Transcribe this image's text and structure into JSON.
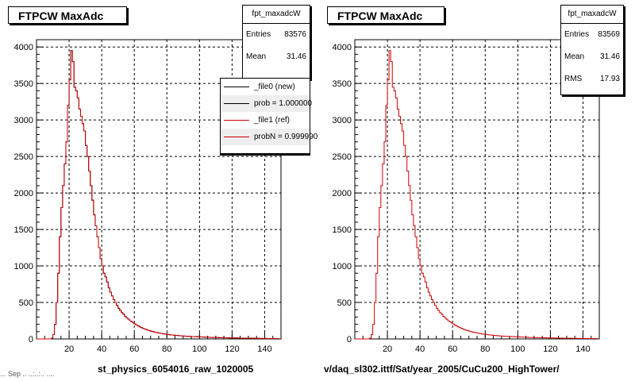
{
  "colors": {
    "new": "#000000",
    "ref": "#d00000",
    "grid": "#000000"
  },
  "panels": [
    {
      "title": "FTPCW MaxAdc",
      "xlabel": "st_physics_6054016_raw_1020005"
    },
    {
      "title": "FTPCW MaxAdc",
      "xlabel": "v/daq_sl302.ittf/Sat/year_2005/CuCu200_HighTower/"
    }
  ],
  "stats": [
    {
      "name": "fpt_maxadcW",
      "rows": [
        {
          "label": "Entries",
          "value": "83576"
        },
        {
          "label": "Mean",
          "value": "31.46"
        }
      ]
    },
    {
      "name": "fpt_maxadcW",
      "rows": [
        {
          "label": "Entries",
          "value": "83569"
        },
        {
          "label": "Mean",
          "value": "31.46"
        },
        {
          "label": "RMS",
          "value": "17.93"
        }
      ]
    }
  ],
  "legend": [
    {
      "label": "_file0 (new)",
      "color": "#000000"
    },
    {
      "label": "prob = 1.000000",
      "color": "#000000"
    },
    {
      "label": "_file1 (ref)",
      "color": "#d00000"
    },
    {
      "label": "probN = 0.999990",
      "color": "#d00000"
    }
  ],
  "footer_text": "... Sep ..  ..:..:.. ....",
  "chart_data": [
    {
      "type": "histogram",
      "title": "FTPCW MaxAdc",
      "xlabel": "st_physics_6054016_raw_1020005",
      "ylabel": "",
      "xlim": [
        0,
        150
      ],
      "ylim": [
        0,
        4100
      ],
      "xticks": [
        20,
        40,
        60,
        80,
        100,
        120,
        140
      ],
      "yticks": [
        0,
        500,
        1000,
        1500,
        2000,
        2500,
        3000,
        3500,
        4000
      ],
      "grid": true,
      "bin_start": 0,
      "bin_width": 1,
      "series": [
        {
          "name": "_file0 (new)",
          "color": "#000000",
          "values": [
            0,
            0,
            0,
            0,
            0,
            0,
            0,
            0,
            0,
            10,
            60,
            200,
            500,
            900,
            1400,
            1800,
            2100,
            2400,
            2700,
            3200,
            3550,
            3950,
            3800,
            3450,
            3400,
            3300,
            3150,
            3050,
            2950,
            2850,
            2650,
            2500,
            2300,
            2100,
            1900,
            1700,
            1550,
            1400,
            1250,
            1100,
            1000,
            900,
            850,
            780,
            700,
            640,
            590,
            540,
            500,
            460,
            420,
            390,
            360,
            340,
            310,
            290,
            270,
            250,
            235,
            220,
            205,
            190,
            178,
            166,
            155,
            145,
            136,
            128,
            120,
            113,
            106,
            100,
            94,
            89,
            84,
            80,
            76,
            72,
            68,
            65,
            62,
            59,
            56,
            54,
            51,
            49,
            47,
            45,
            43,
            41,
            40,
            38,
            36,
            35,
            34,
            33,
            32,
            31,
            30,
            29,
            28,
            27,
            26,
            25,
            24,
            23,
            22,
            21,
            21,
            20,
            19,
            19,
            18,
            17,
            17,
            16,
            16,
            15,
            15,
            14,
            14,
            13,
            13,
            12,
            12,
            11,
            11,
            11,
            10,
            10,
            10,
            9,
            9,
            9,
            8,
            8,
            8,
            7,
            7,
            7,
            7,
            6,
            6,
            6,
            5,
            5,
            5,
            5,
            4
          ]
        },
        {
          "name": "_file1 (ref)",
          "color": "#d00000",
          "values": [
            0,
            0,
            0,
            0,
            0,
            0,
            0,
            0,
            0,
            10,
            60,
            200,
            500,
            900,
            1400,
            1800,
            2100,
            2400,
            2700,
            3200,
            3550,
            3950,
            3800,
            3450,
            3400,
            3300,
            3150,
            3050,
            2950,
            2850,
            2650,
            2500,
            2300,
            2100,
            1900,
            1700,
            1550,
            1400,
            1250,
            1100,
            1000,
            900,
            850,
            780,
            700,
            640,
            590,
            540,
            500,
            460,
            420,
            390,
            360,
            340,
            310,
            290,
            270,
            250,
            235,
            220,
            205,
            190,
            178,
            166,
            155,
            145,
            136,
            128,
            120,
            113,
            106,
            100,
            94,
            89,
            84,
            80,
            76,
            72,
            68,
            65,
            62,
            59,
            56,
            54,
            51,
            49,
            47,
            45,
            43,
            41,
            40,
            38,
            36,
            35,
            34,
            33,
            32,
            31,
            30,
            29,
            28,
            27,
            26,
            25,
            24,
            23,
            22,
            21,
            21,
            20,
            19,
            19,
            18,
            17,
            17,
            16,
            16,
            15,
            15,
            14,
            14,
            13,
            13,
            12,
            12,
            11,
            11,
            11,
            10,
            10,
            10,
            9,
            9,
            9,
            8,
            8,
            8,
            7,
            7,
            7,
            7,
            6,
            6,
            6,
            5,
            5,
            5,
            5,
            4
          ]
        }
      ]
    },
    {
      "type": "histogram",
      "title": "FTPCW MaxAdc",
      "xlabel": "v/daq_sl302.ittf/Sat/year_2005/CuCu200_HighTower/",
      "ylabel": "",
      "xlim": [
        0,
        150
      ],
      "ylim": [
        0,
        4100
      ],
      "xticks": [
        20,
        40,
        60,
        80,
        100,
        120,
        140
      ],
      "yticks": [
        0,
        500,
        1000,
        1500,
        2000,
        2500,
        3000,
        3500,
        4000
      ],
      "grid": true,
      "bin_start": 0,
      "bin_width": 1,
      "series": [
        {
          "name": "_file1 (ref)",
          "color": "#d00000",
          "values": [
            0,
            0,
            0,
            0,
            0,
            0,
            0,
            0,
            0,
            10,
            60,
            200,
            500,
            900,
            1400,
            1800,
            2100,
            2400,
            2700,
            3200,
            3550,
            3950,
            3800,
            3450,
            3400,
            3300,
            3150,
            3050,
            2950,
            2850,
            2650,
            2500,
            2300,
            2100,
            1900,
            1700,
            1550,
            1400,
            1250,
            1100,
            1000,
            900,
            850,
            780,
            700,
            640,
            590,
            540,
            500,
            460,
            420,
            390,
            360,
            340,
            310,
            290,
            270,
            250,
            235,
            220,
            205,
            190,
            178,
            166,
            155,
            145,
            136,
            128,
            120,
            113,
            106,
            100,
            94,
            89,
            84,
            80,
            76,
            72,
            68,
            65,
            62,
            59,
            56,
            54,
            51,
            49,
            47,
            45,
            43,
            41,
            40,
            38,
            36,
            35,
            34,
            33,
            32,
            31,
            30,
            29,
            28,
            27,
            26,
            25,
            24,
            23,
            22,
            21,
            21,
            20,
            19,
            19,
            18,
            17,
            17,
            16,
            16,
            15,
            15,
            14,
            14,
            13,
            13,
            12,
            12,
            11,
            11,
            11,
            10,
            10,
            10,
            9,
            9,
            9,
            8,
            8,
            8,
            7,
            7,
            7,
            7,
            6,
            6,
            6,
            5,
            5,
            5,
            5,
            4
          ]
        }
      ]
    }
  ]
}
